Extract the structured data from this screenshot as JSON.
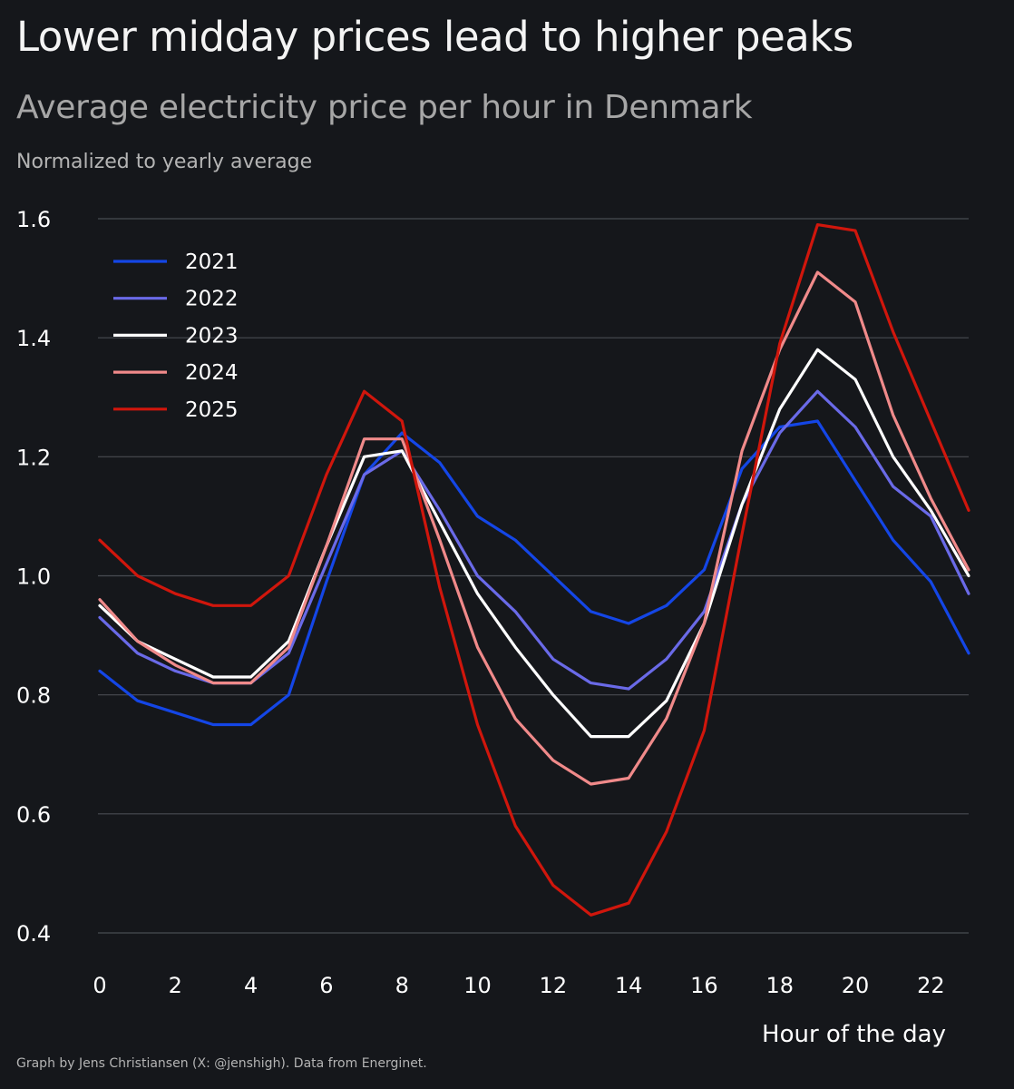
{
  "title": "Lower midday prices lead to higher peaks",
  "subtitle": "Average electricity price per hour in Denmark",
  "note": "Normalized to yearly average",
  "footer": "Graph by Jens Christiansen (X: @jenshigh). Data from Energinet.",
  "chart_data": {
    "type": "line",
    "xlabel": "Hour of the day",
    "ylabel": "",
    "xlim": [
      0,
      23
    ],
    "ylim": [
      0.4,
      1.6
    ],
    "x_ticks": [
      0,
      2,
      4,
      6,
      8,
      10,
      12,
      14,
      16,
      18,
      20,
      22
    ],
    "y_ticks": [
      "0.4",
      "0.6",
      "0.8",
      "1.0",
      "1.2",
      "1.4",
      "1.6"
    ],
    "grid": "horizontal",
    "legend_position": "top-left",
    "x": [
      0,
      1,
      2,
      3,
      4,
      5,
      6,
      7,
      8,
      9,
      10,
      11,
      12,
      13,
      14,
      15,
      16,
      17,
      18,
      19,
      20,
      21,
      22,
      23
    ],
    "series": [
      {
        "name": "2021",
        "color": "#1446e6",
        "values": [
          0.84,
          0.79,
          0.77,
          0.75,
          0.75,
          0.8,
          0.99,
          1.17,
          1.24,
          1.19,
          1.1,
          1.06,
          1.0,
          0.94,
          0.92,
          0.95,
          1.01,
          1.18,
          1.25,
          1.26,
          1.16,
          1.06,
          0.99,
          0.87
        ]
      },
      {
        "name": "2022",
        "color": "#6a6ae8",
        "values": [
          0.93,
          0.87,
          0.84,
          0.82,
          0.82,
          0.87,
          1.02,
          1.17,
          1.21,
          1.11,
          1.0,
          0.94,
          0.86,
          0.82,
          0.81,
          0.86,
          0.94,
          1.12,
          1.24,
          1.31,
          1.25,
          1.15,
          1.1,
          0.97
        ]
      },
      {
        "name": "2023",
        "color": "#ffffff",
        "values": [
          0.95,
          0.89,
          0.86,
          0.83,
          0.83,
          0.89,
          1.05,
          1.2,
          1.21,
          1.09,
          0.97,
          0.88,
          0.8,
          0.73,
          0.73,
          0.79,
          0.92,
          1.12,
          1.28,
          1.38,
          1.33,
          1.2,
          1.11,
          1.0
        ]
      },
      {
        "name": "2024",
        "color": "#f08a8a",
        "values": [
          0.96,
          0.89,
          0.85,
          0.82,
          0.82,
          0.88,
          1.05,
          1.23,
          1.23,
          1.06,
          0.88,
          0.76,
          0.69,
          0.65,
          0.66,
          0.76,
          0.92,
          1.21,
          1.38,
          1.51,
          1.46,
          1.27,
          1.13,
          1.01
        ]
      },
      {
        "name": "2025",
        "color": "#d0160c",
        "values": [
          1.06,
          1.0,
          0.97,
          0.95,
          0.95,
          1.0,
          1.17,
          1.31,
          1.26,
          0.98,
          0.75,
          0.58,
          0.48,
          0.43,
          0.45,
          0.57,
          0.74,
          1.07,
          1.39,
          1.59,
          1.58,
          1.41,
          1.26,
          1.11
        ]
      }
    ]
  }
}
